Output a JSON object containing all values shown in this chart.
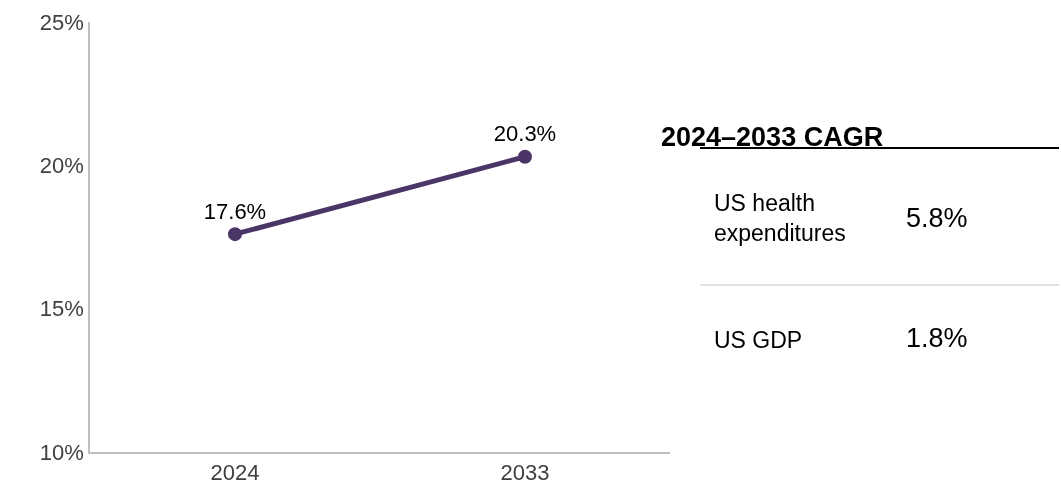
{
  "chart_data": {
    "type": "line",
    "categories": [
      "2024",
      "2033"
    ],
    "series": [
      {
        "color": "#4a3566",
        "values": [
          17.6,
          20.3
        ],
        "value_labels": [
          "17.6%",
          "20.3%"
        ]
      }
    ],
    "ylim": [
      10,
      25
    ],
    "yticks": [
      {
        "value": 10,
        "label": "10%"
      },
      {
        "value": 15,
        "label": "15%"
      },
      {
        "value": 20,
        "label": "20%"
      },
      {
        "value": 25,
        "label": "25%"
      }
    ],
    "grid": false,
    "legend": false,
    "marker": "circle",
    "line_style": "solid",
    "annotations": [
      "2024–2033 CAGR",
      "US health expenditures",
      "5.8%",
      "US GDP",
      "1.8%"
    ]
  }
}
